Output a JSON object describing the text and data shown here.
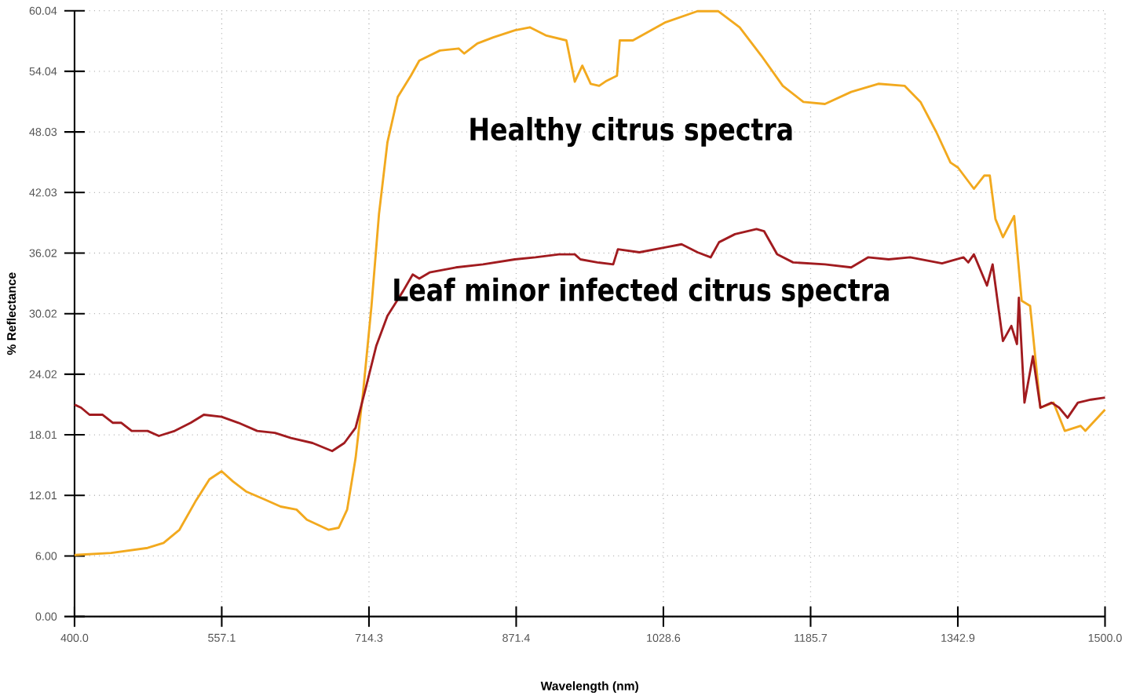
{
  "chart_data": {
    "type": "line",
    "xlabel": "Wavelength (nm)",
    "ylabel": "% Reflectance",
    "xlim": [
      400,
      1500
    ],
    "ylim": [
      0,
      60.04
    ],
    "xticks": [
      {
        "value": 400,
        "label": "400.0"
      },
      {
        "value": 557.14,
        "label": "557.1"
      },
      {
        "value": 714.29,
        "label": "714.3"
      },
      {
        "value": 871.43,
        "label": "871.4"
      },
      {
        "value": 1028.57,
        "label": "1028.6"
      },
      {
        "value": 1185.71,
        "label": "1185.7"
      },
      {
        "value": 1342.86,
        "label": "1342.9"
      },
      {
        "value": 1500,
        "label": "1500.0"
      }
    ],
    "yticks": [
      {
        "value": 0,
        "label": "0.00"
      },
      {
        "value": 6.004,
        "label": "6.00"
      },
      {
        "value": 12.008,
        "label": "12.01"
      },
      {
        "value": 18.012,
        "label": "18.01"
      },
      {
        "value": 24.016,
        "label": "24.02"
      },
      {
        "value": 30.02,
        "label": "30.02"
      },
      {
        "value": 36.024,
        "label": "36.02"
      },
      {
        "value": 42.028,
        "label": "42.03"
      },
      {
        "value": 48.032,
        "label": "48.03"
      },
      {
        "value": 54.036,
        "label": "54.04"
      },
      {
        "value": 60.04,
        "label": "60.04"
      }
    ],
    "grid": true,
    "legend": false,
    "series": [
      {
        "name": "Healthy citrus spectra",
        "color": "#f2a91e",
        "x": [
          400,
          439,
          478,
          495,
          512,
          529,
          544,
          557,
          569,
          583,
          603,
          620,
          637,
          648,
          671,
          682,
          691,
          700,
          708,
          717,
          725,
          734,
          745,
          759,
          768,
          790,
          810,
          816,
          830,
          847,
          870,
          886,
          903,
          925,
          934,
          942,
          951,
          960,
          968,
          979,
          982,
          996,
          1031,
          1065,
          1087,
          1110,
          1133,
          1156,
          1178,
          1201,
          1229,
          1258,
          1286,
          1303,
          1320,
          1335,
          1343,
          1360,
          1371,
          1377,
          1383,
          1391,
          1403,
          1411,
          1420,
          1431,
          1445,
          1457,
          1474,
          1479,
          1500
        ],
        "values": [
          6.1,
          6.3,
          6.8,
          7.3,
          8.6,
          11.4,
          13.6,
          14.4,
          13.4,
          12.4,
          11.6,
          10.9,
          10.6,
          9.6,
          8.6,
          8.8,
          10.6,
          15.7,
          22.2,
          30.8,
          39.9,
          47.0,
          51.5,
          53.6,
          55.1,
          56.1,
          56.3,
          55.8,
          56.8,
          57.4,
          58.1,
          58.4,
          57.6,
          57.1,
          53.0,
          54.6,
          52.8,
          52.6,
          53.1,
          53.6,
          57.1,
          57.1,
          58.9,
          60.0,
          60.0,
          58.4,
          55.6,
          52.6,
          51.0,
          50.8,
          52.0,
          52.8,
          52.6,
          51.0,
          48.0,
          45.0,
          44.5,
          42.4,
          43.7,
          43.7,
          39.4,
          37.6,
          39.7,
          31.3,
          30.8,
          20.7,
          21.2,
          18.4,
          18.9,
          18.4,
          20.5
        ]
      },
      {
        "name": "Leaf minor infected citrus spectra",
        "color": "#a11b1f",
        "x": [
          400,
          407,
          416,
          430,
          441,
          450,
          461,
          478,
          490,
          507,
          524,
          538,
          557,
          575,
          595,
          614,
          631,
          654,
          675,
          688,
          700,
          711,
          722,
          734,
          751,
          761,
          768,
          779,
          807,
          836,
          870,
          892,
          917,
          934,
          940,
          958,
          975,
          980,
          1003,
          1031,
          1048,
          1065,
          1079,
          1088,
          1105,
          1128,
          1136,
          1150,
          1167,
          1201,
          1229,
          1247,
          1269,
          1292,
          1326,
          1349,
          1354,
          1360,
          1374,
          1380,
          1391,
          1400,
          1406,
          1408,
          1414,
          1423,
          1431,
          1443,
          1451,
          1460,
          1471,
          1485,
          1500
        ],
        "values": [
          21.0,
          20.7,
          20.0,
          20.0,
          19.2,
          19.2,
          18.4,
          18.4,
          17.9,
          18.4,
          19.2,
          20.0,
          19.8,
          19.2,
          18.4,
          18.2,
          17.7,
          17.2,
          16.4,
          17.2,
          18.7,
          22.7,
          26.8,
          29.8,
          32.3,
          33.9,
          33.5,
          34.1,
          34.6,
          34.9,
          35.4,
          35.6,
          35.9,
          35.9,
          35.4,
          35.1,
          34.9,
          36.4,
          36.1,
          36.6,
          36.9,
          36.1,
          35.6,
          37.1,
          37.9,
          38.4,
          38.2,
          35.9,
          35.1,
          34.9,
          34.6,
          35.6,
          35.4,
          35.6,
          35.0,
          35.6,
          35.1,
          35.9,
          32.8,
          34.9,
          27.3,
          28.8,
          27.0,
          31.6,
          21.2,
          25.8,
          20.7,
          21.2,
          20.7,
          19.7,
          21.2,
          21.5,
          21.7
        ]
      }
    ]
  }
}
